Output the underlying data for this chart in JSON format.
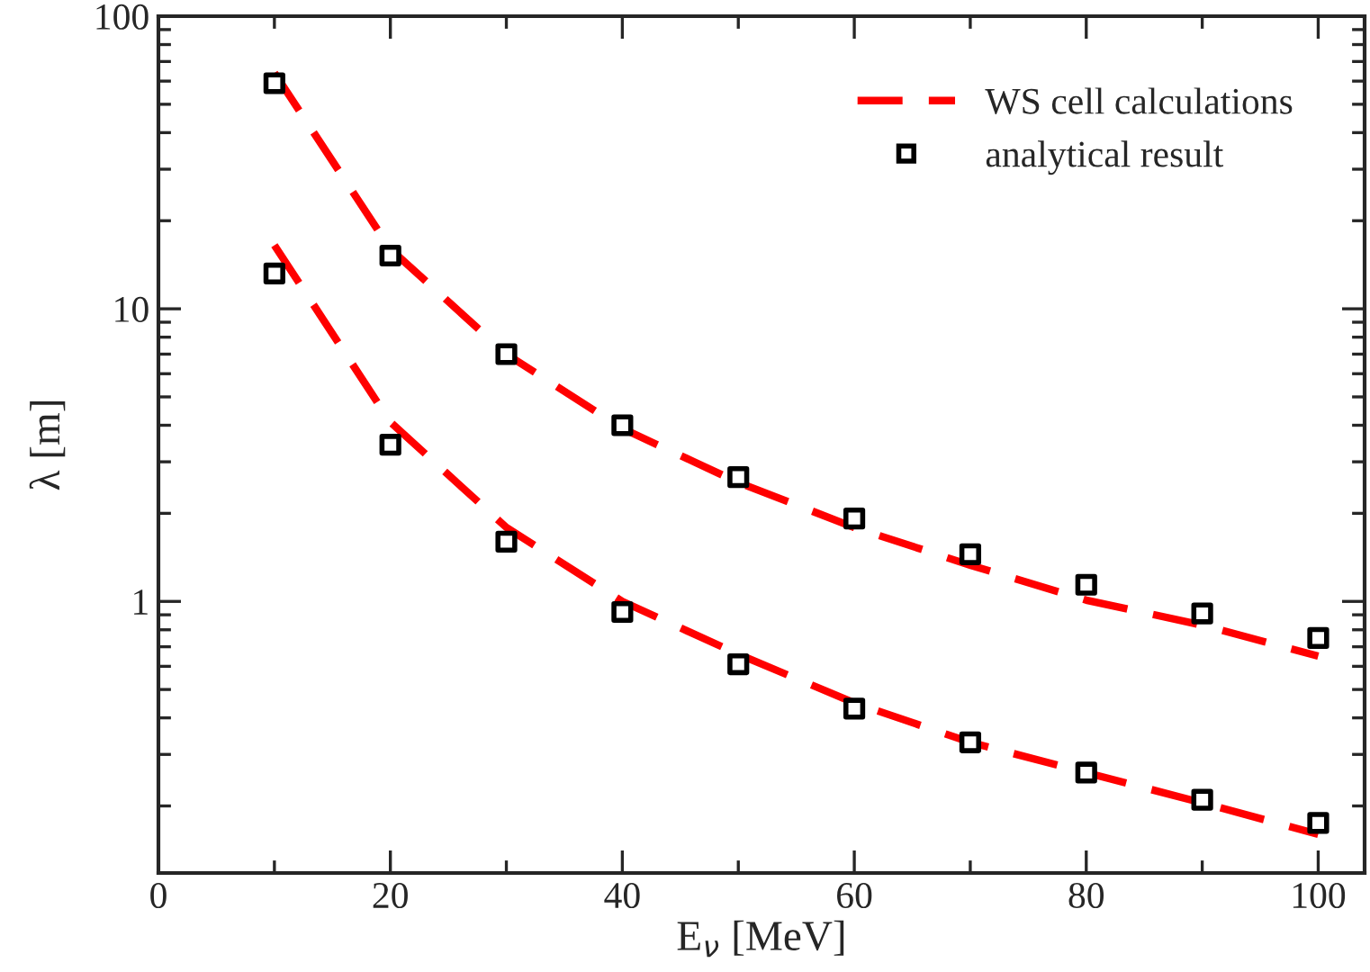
{
  "chart_data": {
    "type": "line",
    "xlabel": "E$_{ν}$ [MeV]",
    "ylabel": "λ [m]",
    "x": [
      10,
      20,
      30,
      40,
      50,
      60,
      70,
      80,
      90,
      100
    ],
    "series": [
      {
        "name": "WS cell calculations",
        "color": "#ff0000",
        "line_style": "dashed",
        "marker": "none",
        "values": [
          64,
          16,
          7.0,
          3.9,
          2.55,
          1.79,
          1.33,
          1.01,
          0.83,
          0.65
        ]
      },
      {
        "color": "#ff0000",
        "line_style": "dashed",
        "marker": "none",
        "values": [
          16.5,
          4.1,
          1.79,
          1.0,
          0.66,
          0.45,
          0.33,
          0.26,
          0.205,
          0.16
        ]
      },
      {
        "name": "analytical result",
        "type": "scatter",
        "color": "#000000",
        "marker": "square",
        "values": [
          59,
          15.2,
          7.0,
          4.0,
          2.66,
          1.92,
          1.45,
          1.14,
          0.91,
          0.75
        ]
      },
      {
        "type": "scatter",
        "color": "#000000",
        "marker": "square",
        "values": [
          13.2,
          3.43,
          1.6,
          0.92,
          0.61,
          0.43,
          0.33,
          0.26,
          0.21,
          0.175
        ]
      }
    ],
    "log": "y",
    "xlim": [
      0,
      104
    ],
    "ylim": [
      0.118,
      100
    ],
    "xticks": [
      0,
      20,
      40,
      60,
      80,
      100
    ],
    "yticks": [
      1,
      10,
      100
    ],
    "grid": false,
    "legend": "top right"
  }
}
